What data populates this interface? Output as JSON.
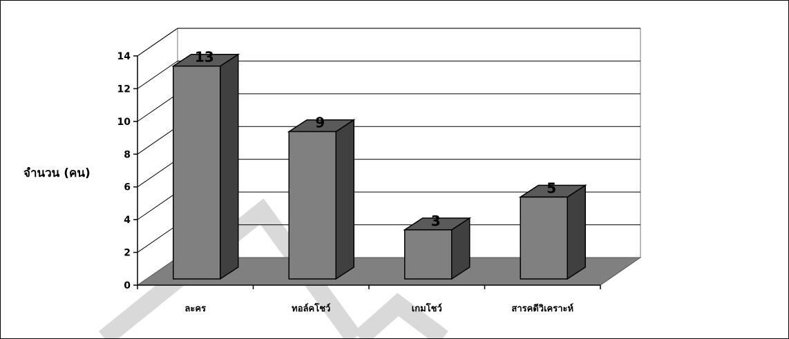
{
  "chart_data": {
    "type": "bar",
    "categories": [
      "ละคร",
      "ทอล์คโชว์",
      "เกมโชว์",
      "สารคดีวิเคราะห์"
    ],
    "values": [
      13,
      9,
      3,
      5
    ],
    "title": "",
    "xlabel": "",
    "ylabel": "จำนวน (คน)",
    "ylim": [
      0,
      14
    ],
    "yticks": [
      0,
      2,
      4,
      6,
      8,
      10,
      12,
      14
    ],
    "grid": true,
    "legend": "none",
    "colors": {
      "bar_front": "#808080",
      "bar_side": "#404040",
      "bar_top": "#5a5a5a",
      "floor": "#808080",
      "watermark": "#d9d9d9"
    }
  }
}
